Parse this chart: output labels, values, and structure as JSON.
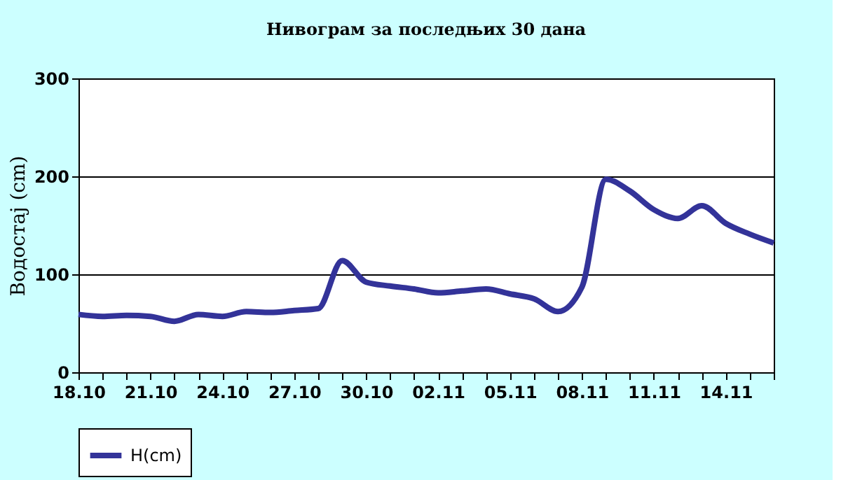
{
  "chart_data": {
    "type": "line",
    "title": "Нивограм за последњих 30 дана",
    "ylabel": "Водостај (cm)",
    "categories": [
      "18.10",
      null,
      null,
      "21.10",
      null,
      null,
      "24.10",
      null,
      null,
      "27.10",
      null,
      null,
      "30.10",
      null,
      null,
      "02.11",
      null,
      null,
      "05.11",
      null,
      null,
      "08.11",
      null,
      null,
      "11.11",
      null,
      null,
      "14.11",
      null,
      null
    ],
    "series": [
      {
        "name": "H(cm)",
        "color": "#333399",
        "values": [
          59,
          57,
          58,
          57,
          52,
          59,
          57,
          62,
          61,
          63,
          65,
          114,
          92,
          88,
          85,
          81,
          83,
          85,
          80,
          75,
          62,
          87,
          197,
          185,
          166,
          157,
          170,
          152,
          141,
          132
        ]
      }
    ],
    "ylim": [
      0,
      300
    ],
    "yticks": [
      0,
      100,
      200,
      300
    ],
    "grid": "y",
    "legend": "bottom",
    "marker": "none",
    "line_style": "solid"
  }
}
